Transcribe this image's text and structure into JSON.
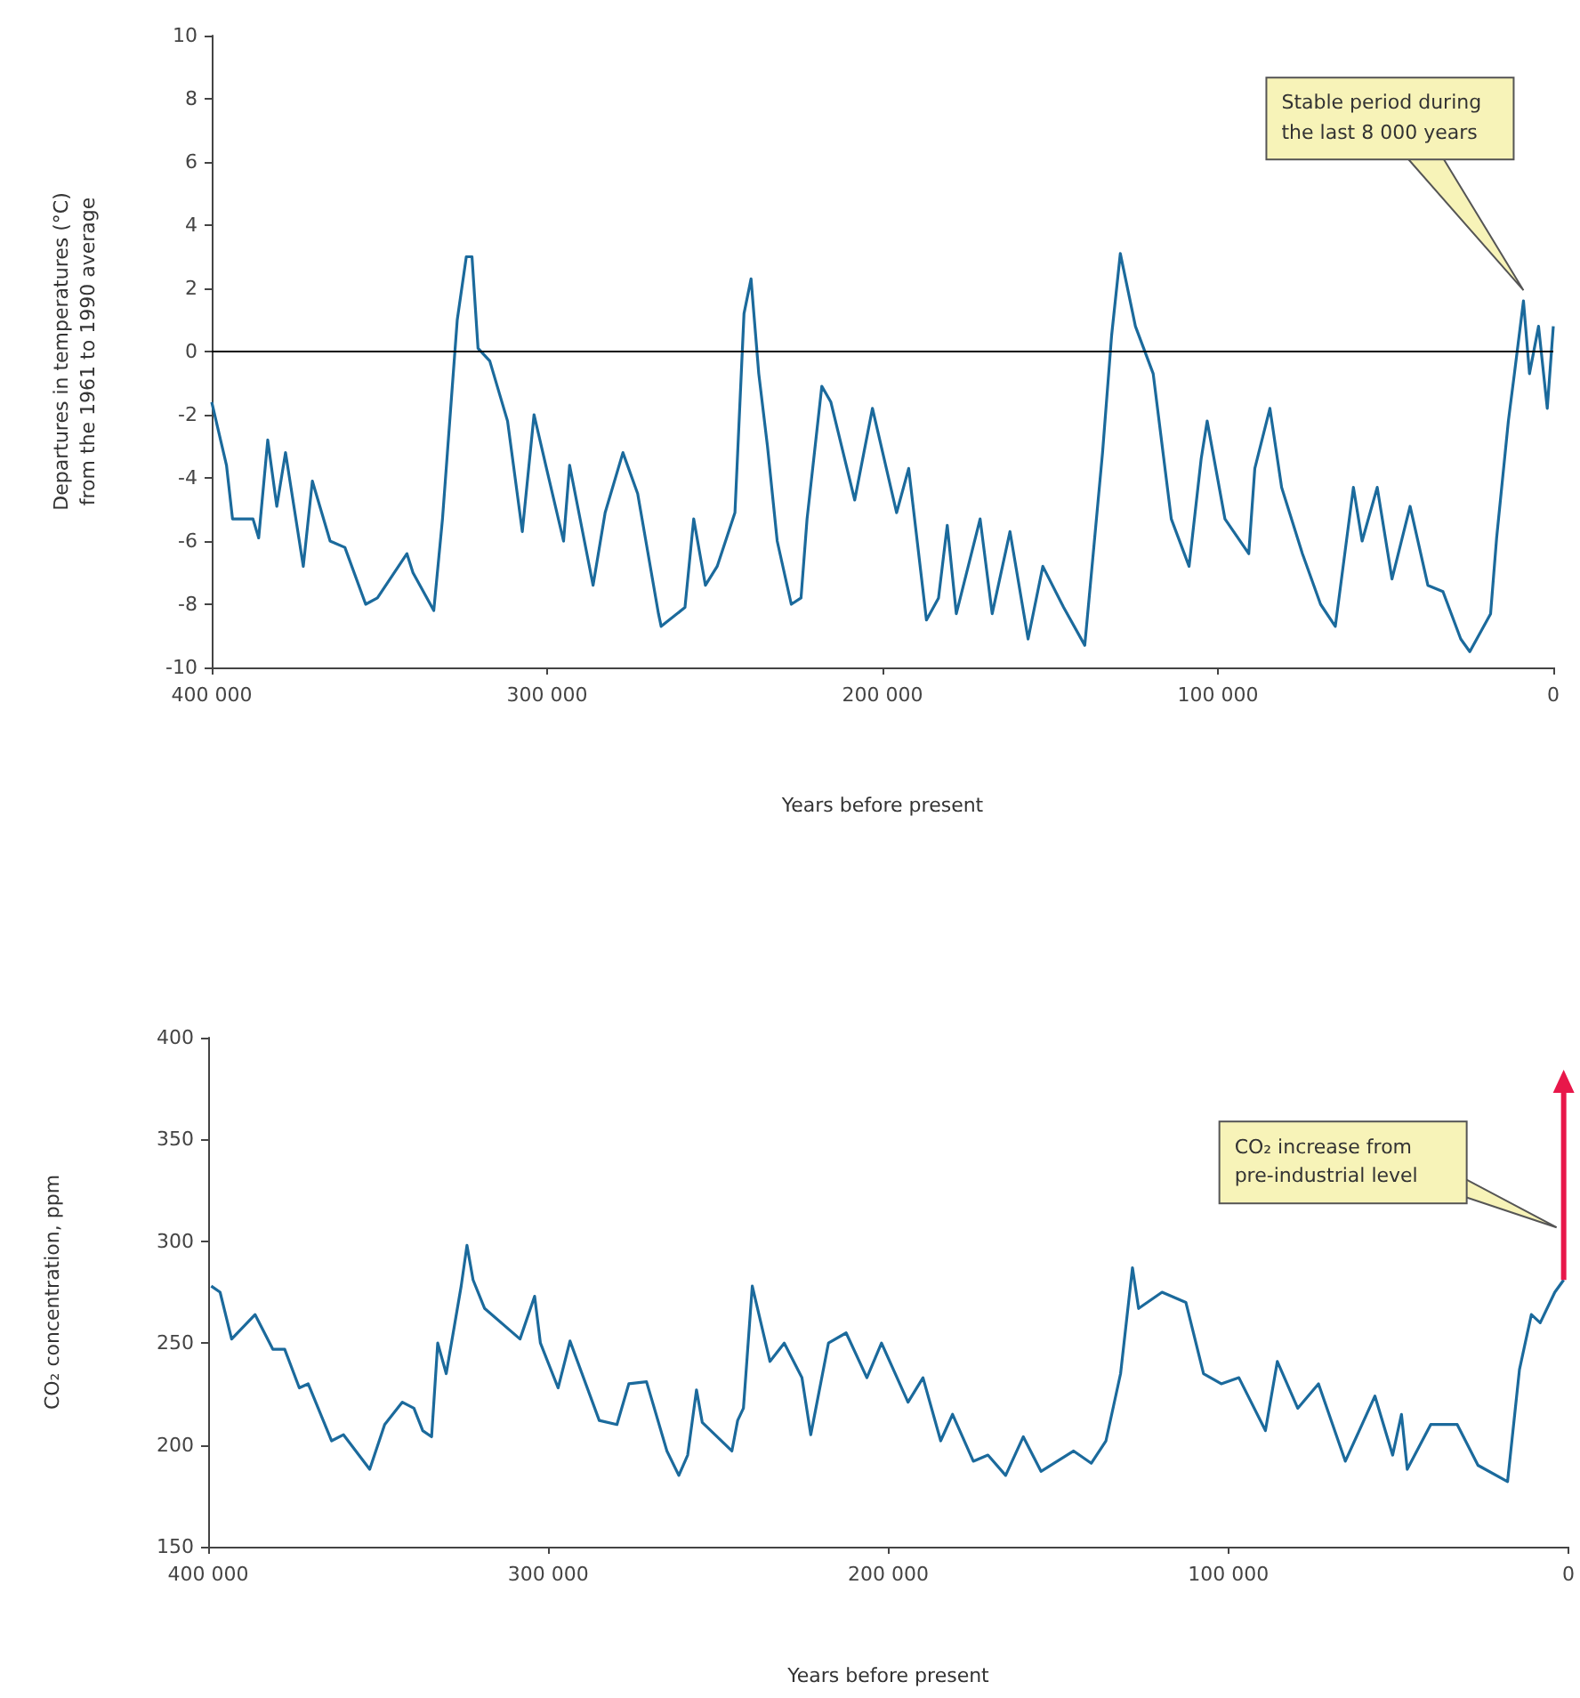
{
  "chart_data": [
    {
      "type": "line",
      "xlabel": "Years before present",
      "ylabel": "Departures in temperatures (°C)\nfrom the 1961 to 1990 average",
      "color": "#1b6a9c",
      "xlim": [
        400000,
        0
      ],
      "xticks": [
        {
          "value": 400000,
          "label": "400 000"
        },
        {
          "value": 300000,
          "label": "300 000"
        },
        {
          "value": 200000,
          "label": "200 000"
        },
        {
          "value": 100000,
          "label": "100 000"
        },
        0
      ],
      "ylim": [
        -10,
        10
      ],
      "yticks": [
        -10,
        -8,
        -6,
        -4,
        -2,
        0,
        2,
        4,
        6,
        8,
        10
      ],
      "ref_lines": [
        {
          "axis": "y",
          "value": 0,
          "color": "#000000"
        }
      ],
      "annotations": [
        "Stable period during the last 8 000 years"
      ],
      "x": [
        400000,
        395600,
        393800,
        387700,
        386000,
        383300,
        380600,
        378000,
        372700,
        370000,
        364700,
        360300,
        354100,
        350600,
        341800,
        340000,
        333800,
        331200,
        326800,
        324100,
        322400,
        320600,
        317100,
        311800,
        307400,
        303900,
        300400,
        295100,
        293300,
        286300,
        282700,
        277400,
        273000,
        266800,
        266000,
        258900,
        256300,
        252800,
        249300,
        244000,
        241300,
        239200,
        236900,
        234300,
        231400,
        227200,
        224300,
        222500,
        218100,
        215400,
        208300,
        203000,
        195800,
        192200,
        186900,
        183300,
        180700,
        178000,
        170900,
        167300,
        162000,
        156600,
        152200,
        146000,
        139700,
        134400,
        131700,
        129100,
        124600,
        119300,
        113900,
        108600,
        105000,
        103200,
        97900,
        90800,
        89000,
        84500,
        81000,
        74800,
        69400,
        65000,
        59600,
        57000,
        52500,
        48100,
        42700,
        37400,
        32900,
        27600,
        24900,
        18700,
        16900,
        13400,
        11600,
        8900,
        7100,
        4400,
        1800,
        0
      ],
      "values": [
        -1.6,
        -3.6,
        -5.3,
        -5.3,
        -5.9,
        -2.8,
        -4.9,
        -3.2,
        -6.8,
        -4.1,
        -6.0,
        -6.2,
        -8.0,
        -7.8,
        -6.4,
        -7.0,
        -8.2,
        -5.3,
        1.0,
        3.0,
        3.0,
        0.1,
        -0.3,
        -2.2,
        -5.7,
        -2.0,
        -3.6,
        -6.0,
        -3.6,
        -7.4,
        -5.1,
        -3.2,
        -4.5,
        -8.3,
        -8.7,
        -8.1,
        -5.3,
        -7.4,
        -6.8,
        -5.1,
        1.2,
        2.3,
        -0.7,
        -3.0,
        -6.0,
        -8.0,
        -7.8,
        -5.3,
        -1.1,
        -1.6,
        -4.7,
        -1.8,
        -5.1,
        -3.7,
        -8.5,
        -7.8,
        -5.5,
        -8.3,
        -5.3,
        -8.3,
        -5.7,
        -9.1,
        -6.8,
        -8.1,
        -9.3,
        -3.2,
        0.5,
        3.1,
        0.8,
        -0.7,
        -5.3,
        -6.8,
        -3.4,
        -2.2,
        -5.3,
        -6.4,
        -3.7,
        -1.8,
        -4.3,
        -6.4,
        -8.0,
        -8.7,
        -4.3,
        -6.0,
        -4.3,
        -7.2,
        -4.9,
        -7.4,
        -7.6,
        -9.1,
        -9.5,
        -8.3,
        -5.9,
        -2.2,
        -0.7,
        1.6,
        -0.7,
        0.8,
        -1.8,
        0.8
      ]
    },
    {
      "type": "line",
      "xlabel": "Years before present",
      "ylabel": "CO₂ concentration, ppm",
      "color": "#1b6a9c",
      "xlim": [
        400000,
        0
      ],
      "xticks": [
        {
          "value": 400000,
          "label": "400 000"
        },
        {
          "value": 300000,
          "label": "300 000"
        },
        {
          "value": 200000,
          "label": "200 000"
        },
        {
          "value": 100000,
          "label": "100 000"
        },
        0
      ],
      "ylim": [
        150,
        400
      ],
      "yticks": [
        150,
        200,
        250,
        300,
        350,
        400
      ],
      "annotations": [
        "CO₂ increase from pre-industrial level"
      ],
      "x": [
        399100,
        396500,
        393100,
        386200,
        381000,
        377500,
        373200,
        370600,
        363700,
        360200,
        352500,
        348100,
        342900,
        339500,
        336900,
        334300,
        332500,
        330000,
        325600,
        323900,
        322100,
        318700,
        308300,
        304000,
        302300,
        297100,
        293600,
        285000,
        279800,
        276300,
        271100,
        265100,
        261600,
        259000,
        256400,
        254700,
        246000,
        244300,
        242600,
        240000,
        234800,
        230600,
        225400,
        222800,
        217600,
        212400,
        206300,
        202000,
        194200,
        189800,
        184600,
        181100,
        175000,
        170700,
        165500,
        160300,
        155100,
        145500,
        140300,
        136000,
        131700,
        128200,
        126400,
        119500,
        112500,
        107300,
        102100,
        96900,
        89100,
        85600,
        79600,
        73500,
        65600,
        56900,
        51700,
        49100,
        47400,
        40500,
        32700,
        26600,
        17900,
        14400,
        10900,
        8300,
        4000,
        1400
      ],
      "values": [
        278,
        275,
        252,
        264,
        247,
        247,
        228,
        230,
        202,
        205,
        188,
        210,
        221,
        218,
        207,
        204,
        250,
        235,
        278,
        298,
        281,
        267,
        252,
        273,
        250,
        228,
        251,
        212,
        210,
        230,
        231,
        197,
        185,
        195,
        227,
        211,
        197,
        212,
        218,
        278,
        241,
        250,
        233,
        205,
        250,
        255,
        233,
        250,
        221,
        233,
        202,
        215,
        192,
        195,
        185,
        204,
        187,
        197,
        191,
        202,
        235,
        287,
        267,
        275,
        270,
        235,
        230,
        233,
        207,
        241,
        218,
        230,
        192,
        224,
        195,
        215,
        188,
        210,
        210,
        190,
        182,
        237,
        264,
        260,
        275,
        281
      ]
    }
  ]
}
